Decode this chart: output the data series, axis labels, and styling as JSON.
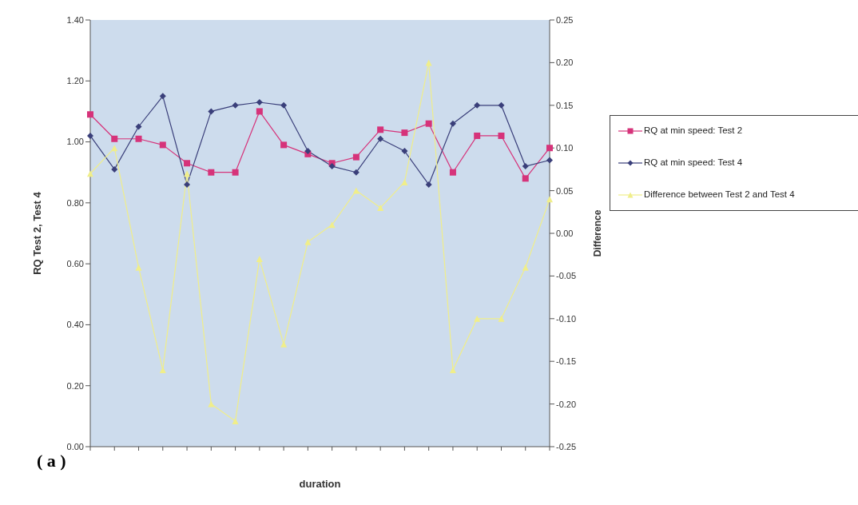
{
  "chart_data": {
    "type": "line",
    "categories": [
      null,
      null,
      null,
      null,
      null,
      null,
      null,
      null,
      null,
      null,
      null,
      null,
      null,
      null,
      null,
      null,
      null,
      null,
      null,
      null
    ],
    "series": [
      {
        "name": "RQ at min speed: Test 2",
        "color": "#d6337a",
        "marker": "square",
        "values": [
          1.09,
          1.01,
          1.01,
          0.99,
          0.93,
          0.9,
          0.9,
          1.1,
          0.99,
          0.96,
          0.93,
          0.95,
          1.04,
          1.03,
          1.06,
          0.9,
          1.02,
          1.02,
          0.88,
          0.98
        ]
      },
      {
        "name": "RQ at min speed: Test 4",
        "color": "#3a3f7a",
        "marker": "diamond",
        "values": [
          1.02,
          0.91,
          1.05,
          1.15,
          0.86,
          1.1,
          1.12,
          1.13,
          1.12,
          0.97,
          0.92,
          0.9,
          1.01,
          0.97,
          0.86,
          1.06,
          1.12,
          1.12,
          0.92,
          0.94
        ]
      },
      {
        "name": "Difference between Test 2 and Test 4",
        "color": "#f0ee8a",
        "marker": "triangle",
        "axis": "y2",
        "values": [
          0.07,
          0.1,
          -0.04,
          -0.16,
          0.07,
          -0.2,
          -0.22,
          -0.03,
          -0.13,
          -0.01,
          0.01,
          0.05,
          0.03,
          0.06,
          0.2,
          -0.16,
          -0.1,
          -0.1,
          -0.04,
          0.04
        ]
      }
    ],
    "xlabel": "duration",
    "ylabel": "RQ Test 2, Test 4",
    "y2label": "Difference",
    "ylim": [
      0,
      1.4
    ],
    "yticks": [
      {
        "value": 0,
        "label": "0.00"
      },
      {
        "value": 0.2,
        "label": "0.20"
      },
      {
        "value": 0.4,
        "label": "0.40"
      },
      {
        "value": 0.6,
        "label": "0.60"
      },
      {
        "value": 0.8,
        "label": "0.80"
      },
      {
        "value": 1.0,
        "label": "1.00"
      },
      {
        "value": 1.2,
        "label": "1.20"
      },
      {
        "value": 1.4,
        "label": "1.40"
      }
    ],
    "y2lim": [
      -0.25,
      0.25
    ],
    "y2ticks": [
      {
        "value": -0.25,
        "label": "-0.25"
      },
      {
        "value": -0.2,
        "label": "-0.20"
      },
      {
        "value": -0.15,
        "label": "-0.15"
      },
      {
        "value": -0.1,
        "label": "-0.10"
      },
      {
        "value": -0.05,
        "label": "-0.05"
      },
      {
        "value": 0,
        "label": "0.00"
      },
      {
        "value": 0.05,
        "label": "0.05"
      },
      {
        "value": 0.1,
        "label": "0.10"
      },
      {
        "value": 0.15,
        "label": "0.15"
      },
      {
        "value": 0.2,
        "label": "0.20"
      },
      {
        "value": 0.25,
        "label": "0.25"
      }
    ],
    "legend": "right",
    "annotations": [
      "( a )"
    ]
  }
}
